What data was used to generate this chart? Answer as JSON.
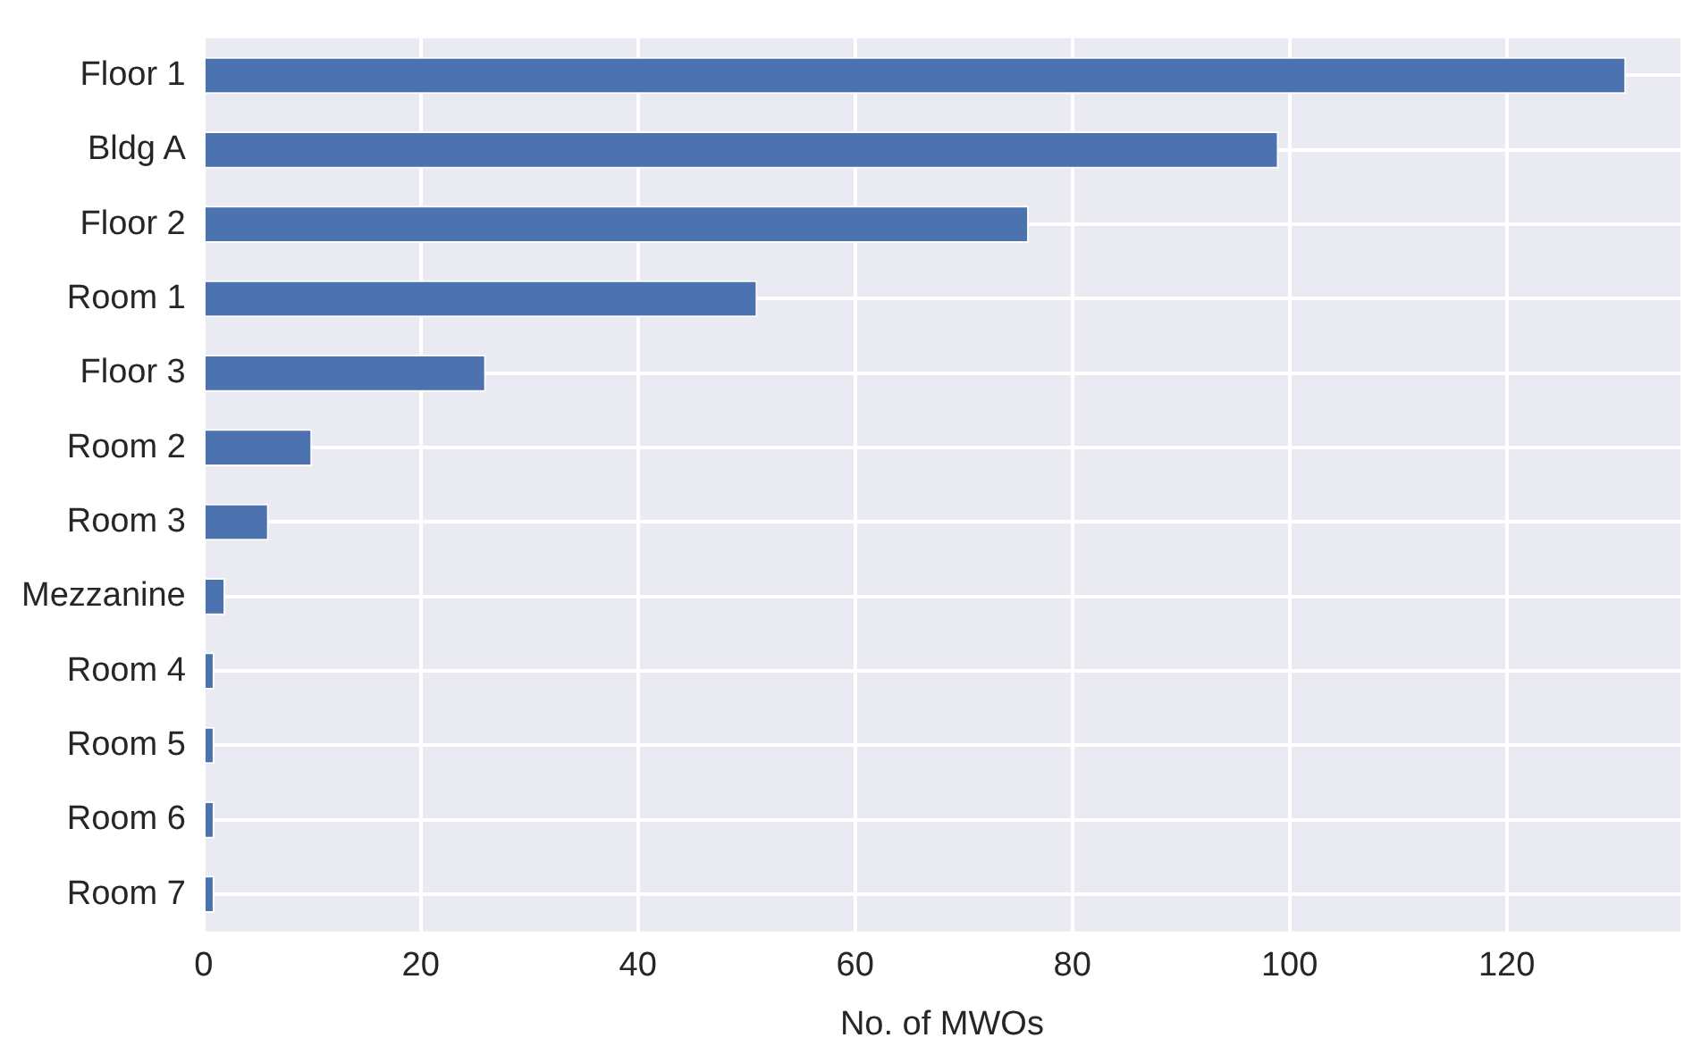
{
  "chart_data": {
    "type": "bar",
    "orientation": "horizontal",
    "xlabel": "No. of MWOs",
    "categories": [
      "Floor 1",
      "Bldg A",
      "Floor 2",
      "Room 1",
      "Floor 3",
      "Room 2",
      "Room 3",
      "Mezzanine",
      "Room 4",
      "Room 5",
      "Room 6",
      "Room 7"
    ],
    "values": [
      131,
      99,
      76,
      51,
      26,
      10,
      6,
      2,
      1,
      1,
      1,
      1
    ],
    "color": "#4c72b0",
    "xlim": [
      0,
      136
    ],
    "xticks": [
      0,
      20,
      40,
      60,
      80,
      100,
      120
    ],
    "grid": true,
    "legend": false
  }
}
